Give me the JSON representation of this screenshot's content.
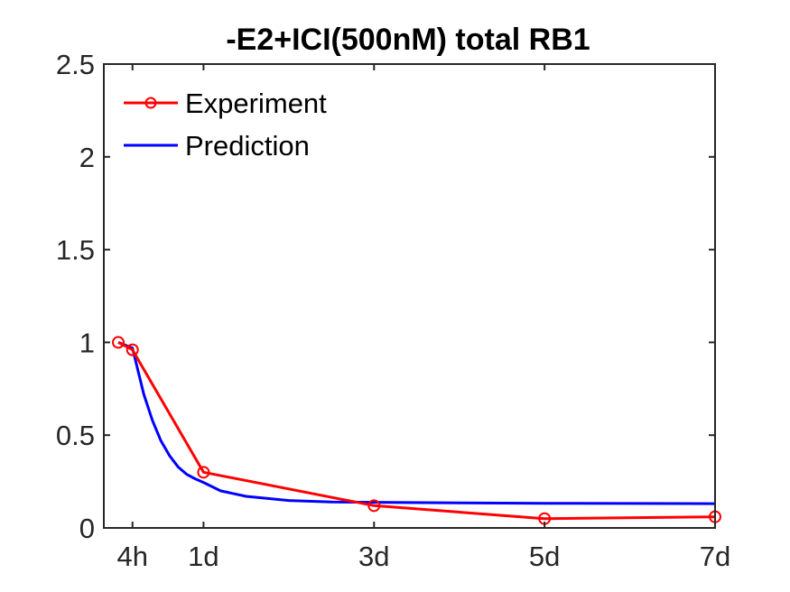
{
  "chart_data": {
    "type": "line",
    "title": "-E2+ICI(500nM) total RB1",
    "xlabel": "",
    "ylabel": "",
    "xlim": [
      0,
      7
    ],
    "ylim": [
      0,
      2.5
    ],
    "x_ticks": [
      {
        "value": 0.1667,
        "label": "4h"
      },
      {
        "value": 1,
        "label": "1d"
      },
      {
        "value": 3,
        "label": "3d"
      },
      {
        "value": 5,
        "label": "5d"
      },
      {
        "value": 7,
        "label": "7d"
      }
    ],
    "y_ticks": [
      {
        "value": 0,
        "label": "0"
      },
      {
        "value": 0.5,
        "label": "0.5"
      },
      {
        "value": 1,
        "label": "1"
      },
      {
        "value": 1.5,
        "label": "1.5"
      },
      {
        "value": 2,
        "label": "2"
      },
      {
        "value": 2.5,
        "label": "2.5"
      }
    ],
    "legend_position": "top-left",
    "grid": false,
    "series": [
      {
        "name": "Experiment",
        "color": "#ff0000",
        "marker": "circle",
        "x": [
          0,
          0.1667,
          1,
          3,
          5,
          7
        ],
        "y": [
          1.0,
          0.96,
          0.3,
          0.12,
          0.05,
          0.06
        ]
      },
      {
        "name": "Prediction",
        "color": "#0000ff",
        "marker": "none",
        "x": [
          0,
          0.1667,
          0.3,
          0.4,
          0.5,
          0.6,
          0.7,
          0.8,
          0.9,
          1,
          1.2,
          1.5,
          2,
          2.5,
          3,
          4,
          5,
          6,
          7
        ],
        "y": [
          1.0,
          0.97,
          0.72,
          0.58,
          0.47,
          0.39,
          0.33,
          0.29,
          0.265,
          0.245,
          0.2,
          0.17,
          0.148,
          0.14,
          0.138,
          0.135,
          0.133,
          0.132,
          0.131
        ]
      }
    ]
  }
}
